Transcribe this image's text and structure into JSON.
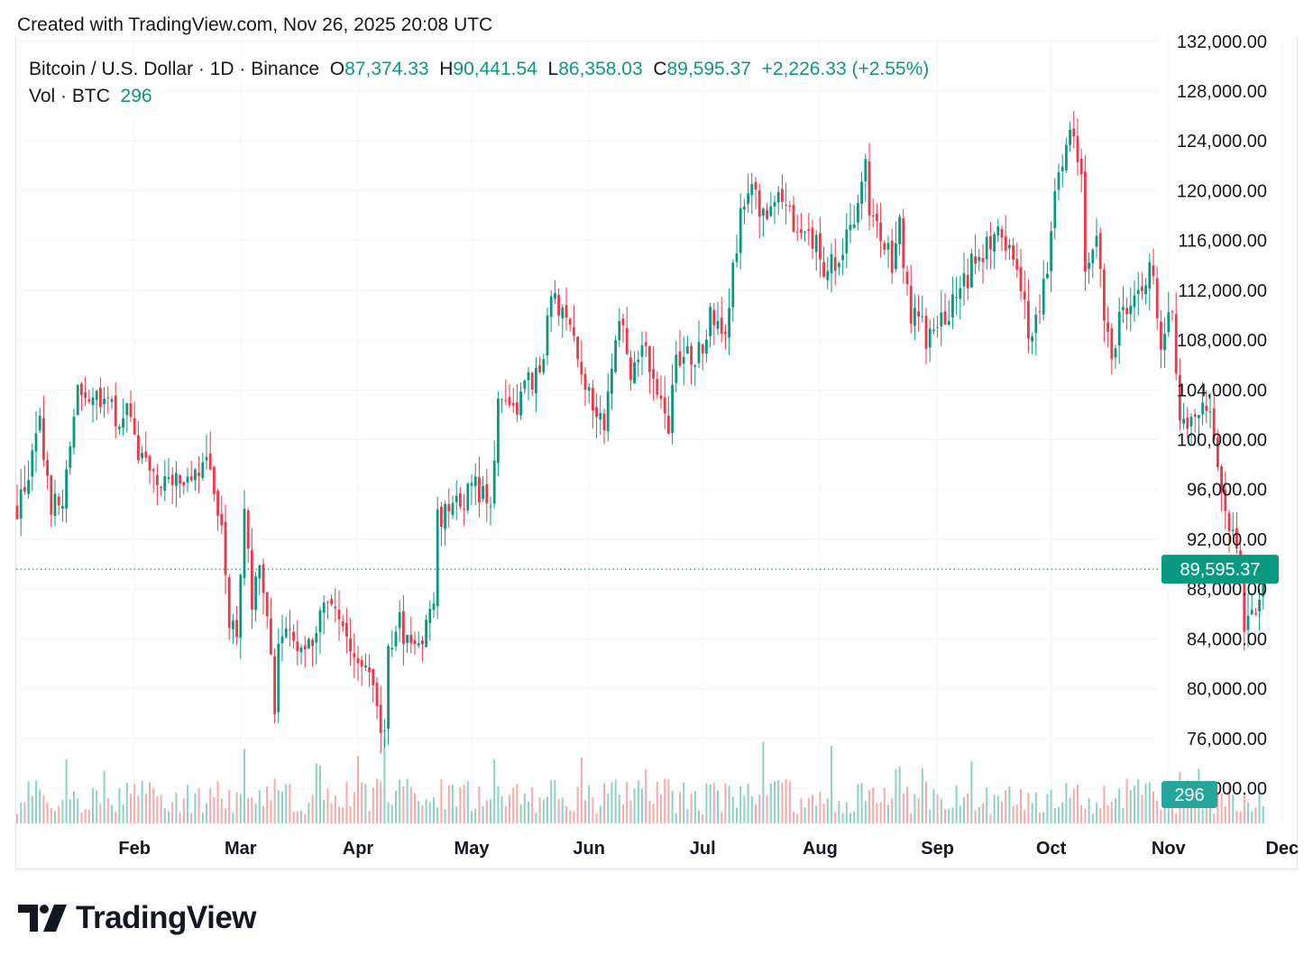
{
  "header": {
    "created_text": "Created with TradingView.com, Nov 26, 2025 20:08 UTC"
  },
  "legend": {
    "symbol_text": "Bitcoin / U.S. Dollar · 1D · Binance",
    "open_label": "O",
    "open_value": "87,374.33",
    "high_label": "H",
    "high_value": "90,441.54",
    "low_label": "L",
    "low_value": "86,358.03",
    "close_label": "C",
    "close_value": "89,595.37",
    "change_value": "+2,226.33 (+2.55%)",
    "volume_label": "Vol · BTC",
    "volume_value": "296"
  },
  "branding": {
    "logo_text": "TradingView"
  },
  "colors": {
    "up": "#089981",
    "down": "#f23645",
    "volume_up": "#8ed1c4",
    "volume_down": "#f7a9a7",
    "grid": "#f0f3fa",
    "axis_text": "#131722",
    "price_line": "#089981",
    "badge_bg": "#089981",
    "volume_badge_bg": "#26a69a"
  },
  "chart_data": {
    "type": "candlestick",
    "interval": "1D",
    "ylim": [
      68000,
      132000
    ],
    "yticks": [
      "132,000.00",
      "128,000.00",
      "124,000.00",
      "120,000.00",
      "116,000.00",
      "112,000.00",
      "108,000.00",
      "104,000.00",
      "100,000.00",
      "96,000.00",
      "92,000.00",
      "88,000.00",
      "84,000.00",
      "80,000.00",
      "76,000.00",
      "72,000.00"
    ],
    "xticks": [
      "Feb",
      "Mar",
      "Apr",
      "May",
      "Jun",
      "Jul",
      "Aug",
      "Sep",
      "Oct",
      "Nov",
      "Dec"
    ],
    "last_price": 89595.37,
    "last_price_label": "89,595.37",
    "last_volume_label": "296",
    "close_path": [
      [
        "2025-01-01",
        94500
      ],
      [
        "2025-01-05",
        98200
      ],
      [
        "2025-01-07",
        101000
      ],
      [
        "2025-01-10",
        94800
      ],
      [
        "2025-01-13",
        94500
      ],
      [
        "2025-01-15",
        99000
      ],
      [
        "2025-01-17",
        104500
      ],
      [
        "2025-01-20",
        102000
      ],
      [
        "2025-01-22",
        103500
      ],
      [
        "2025-01-26",
        102500
      ],
      [
        "2025-01-28",
        101500
      ],
      [
        "2025-01-31",
        102000
      ],
      [
        "2025-02-02",
        97500
      ],
      [
        "2025-02-03",
        99000
      ],
      [
        "2025-02-08",
        96500
      ],
      [
        "2025-02-13",
        96700
      ],
      [
        "2025-02-20",
        98200
      ],
      [
        "2025-02-24",
        93500
      ],
      [
        "2025-02-26",
        84500
      ],
      [
        "2025-02-28",
        84300
      ],
      [
        "2025-03-02",
        94300
      ],
      [
        "2025-03-04",
        87200
      ],
      [
        "2025-03-06",
        90500
      ],
      [
        "2025-03-08",
        86200
      ],
      [
        "2025-03-10",
        78500
      ],
      [
        "2025-03-11",
        82800
      ],
      [
        "2025-03-14",
        84300
      ],
      [
        "2025-03-17",
        83900
      ],
      [
        "2025-03-20",
        84400
      ],
      [
        "2025-03-24",
        87300
      ],
      [
        "2025-03-26",
        86800
      ],
      [
        "2025-03-28",
        84300
      ],
      [
        "2025-03-31",
        82500
      ],
      [
        "2025-04-02",
        82500
      ],
      [
        "2025-04-06",
        78300
      ],
      [
        "2025-04-08",
        76300
      ],
      [
        "2025-04-09",
        82600
      ],
      [
        "2025-04-12",
        85200
      ],
      [
        "2025-04-15",
        83600
      ],
      [
        "2025-04-18",
        84500
      ],
      [
        "2025-04-21",
        87500
      ],
      [
        "2025-04-22",
        93400
      ],
      [
        "2025-04-25",
        94700
      ],
      [
        "2025-04-28",
        95000
      ],
      [
        "2025-05-02",
        96500
      ],
      [
        "2025-05-06",
        94700
      ],
      [
        "2025-05-08",
        103000
      ],
      [
        "2025-05-12",
        102800
      ],
      [
        "2025-05-15",
        103700
      ],
      [
        "2025-05-20",
        106800
      ],
      [
        "2025-05-22",
        111700
      ],
      [
        "2025-05-26",
        109500
      ],
      [
        "2025-05-31",
        104600
      ],
      [
        "2025-06-05",
        101500
      ],
      [
        "2025-06-09",
        110200
      ],
      [
        "2025-06-12",
        105600
      ],
      [
        "2025-06-16",
        107100
      ],
      [
        "2025-06-20",
        103300
      ],
      [
        "2025-06-22",
        100900
      ],
      [
        "2025-06-24",
        106000
      ],
      [
        "2025-06-30",
        107100
      ],
      [
        "2025-07-03",
        109600
      ],
      [
        "2025-07-07",
        108200
      ],
      [
        "2025-07-10",
        116000
      ],
      [
        "2025-07-11",
        117500
      ],
      [
        "2025-07-14",
        119800
      ],
      [
        "2025-07-18",
        117900
      ],
      [
        "2025-07-22",
        119900
      ],
      [
        "2025-07-25",
        117600
      ],
      [
        "2025-07-31",
        115700
      ],
      [
        "2025-08-02",
        113300
      ],
      [
        "2025-08-05",
        114100
      ],
      [
        "2025-08-08",
        116700
      ],
      [
        "2025-08-11",
        118700
      ],
      [
        "2025-08-13",
        123300
      ],
      [
        "2025-08-14",
        118300
      ],
      [
        "2025-08-18",
        116200
      ],
      [
        "2025-08-20",
        114200
      ],
      [
        "2025-08-22",
        116900
      ],
      [
        "2025-08-25",
        110100
      ],
      [
        "2025-08-29",
        108400
      ],
      [
        "2025-09-01",
        109200
      ],
      [
        "2025-09-05",
        110700
      ],
      [
        "2025-09-10",
        113900
      ],
      [
        "2025-09-14",
        115300
      ],
      [
        "2025-09-18",
        117100
      ],
      [
        "2025-09-22",
        112700
      ],
      [
        "2025-09-25",
        109000
      ],
      [
        "2025-09-27",
        109700
      ],
      [
        "2025-09-30",
        114000
      ],
      [
        "2025-10-02",
        120600
      ],
      [
        "2025-10-05",
        123500
      ],
      [
        "2025-10-06",
        124700
      ],
      [
        "2025-10-08",
        123300
      ],
      [
        "2025-10-09",
        121400
      ],
      [
        "2025-10-10",
        112800
      ],
      [
        "2025-10-13",
        115300
      ],
      [
        "2025-10-16",
        108200
      ],
      [
        "2025-10-17",
        106400
      ],
      [
        "2025-10-20",
        110600
      ],
      [
        "2025-10-24",
        111000
      ],
      [
        "2025-10-27",
        114100
      ],
      [
        "2025-10-30",
        108300
      ],
      [
        "2025-11-02",
        110600
      ],
      [
        "2025-11-04",
        101500
      ],
      [
        "2025-11-06",
        101300
      ],
      [
        "2025-11-08",
        102300
      ],
      [
        "2025-11-11",
        103000
      ],
      [
        "2025-11-13",
        99700
      ],
      [
        "2025-11-16",
        94200
      ],
      [
        "2025-11-19",
        91600
      ],
      [
        "2025-11-21",
        85100
      ],
      [
        "2025-11-23",
        86800
      ],
      [
        "2025-11-25",
        87370
      ],
      [
        "2025-11-26",
        89595
      ]
    ]
  }
}
